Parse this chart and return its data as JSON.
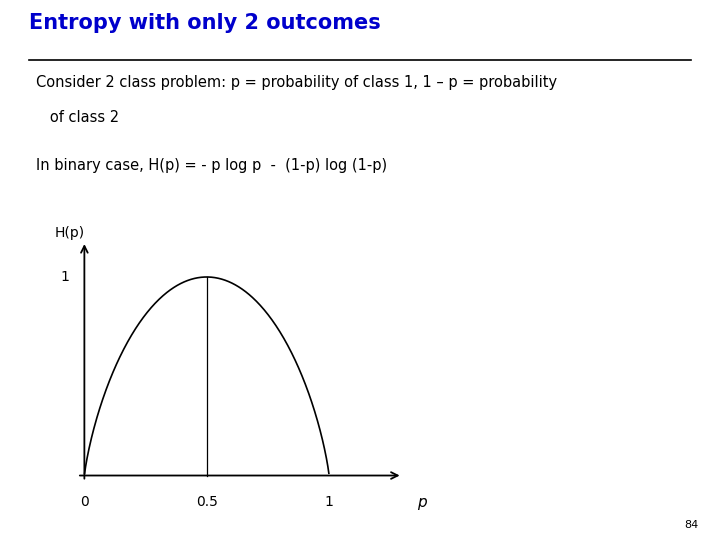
{
  "title": "Entropy with only 2 outcomes",
  "title_color": "#0000CC",
  "title_fontsize": 15,
  "bg_color": "#FFFFFF",
  "text_line1a": "Consider 2 class problem: p = probability of class 1, 1 – p = probability",
  "text_line1b": "   of class 2",
  "text_line2": "In binary case, H(p) = - p log p  -  (1-p) log (1-p)",
  "text_color": "#000000",
  "text_fontsize": 10.5,
  "ylabel_text": "H(p)",
  "xlabel_text": "p",
  "curve_color": "#000000",
  "axis_color": "#000000",
  "page_number": "84",
  "title_underline_color": "#000000"
}
